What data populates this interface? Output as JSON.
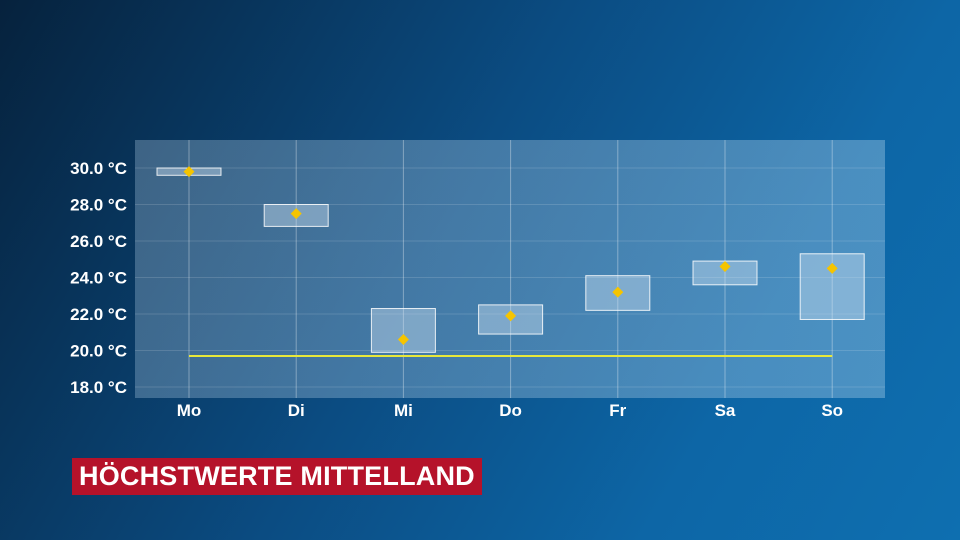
{
  "title": "HÖCHSTWERTE MITTELLAND",
  "colors": {
    "title_bg": "#b5122a",
    "marker": "#f5c400",
    "reference_line": "#e8e83a",
    "range_box": "#cfe2f2"
  },
  "chart_data": {
    "type": "range-box",
    "categories": [
      "Mo",
      "Di",
      "Mi",
      "Do",
      "Fr",
      "Sa",
      "So"
    ],
    "y_ticks": [
      "18.0 °C",
      "20.0 °C",
      "22.0 °C",
      "24.0 °C",
      "26.0 °C",
      "28.0 °C",
      "30.0 °C"
    ],
    "ylim": [
      17.5,
      31.5
    ],
    "grid": true,
    "series": [
      {
        "low": [
          29.6,
          26.8,
          19.9,
          20.9,
          22.2,
          23.6,
          21.7
        ],
        "high": [
          30.0,
          28.0,
          22.3,
          22.5,
          24.1,
          24.9,
          25.3
        ],
        "expected": [
          29.8,
          27.5,
          20.6,
          21.9,
          23.2,
          24.6,
          24.5
        ]
      }
    ],
    "reference_line": 19.7
  }
}
